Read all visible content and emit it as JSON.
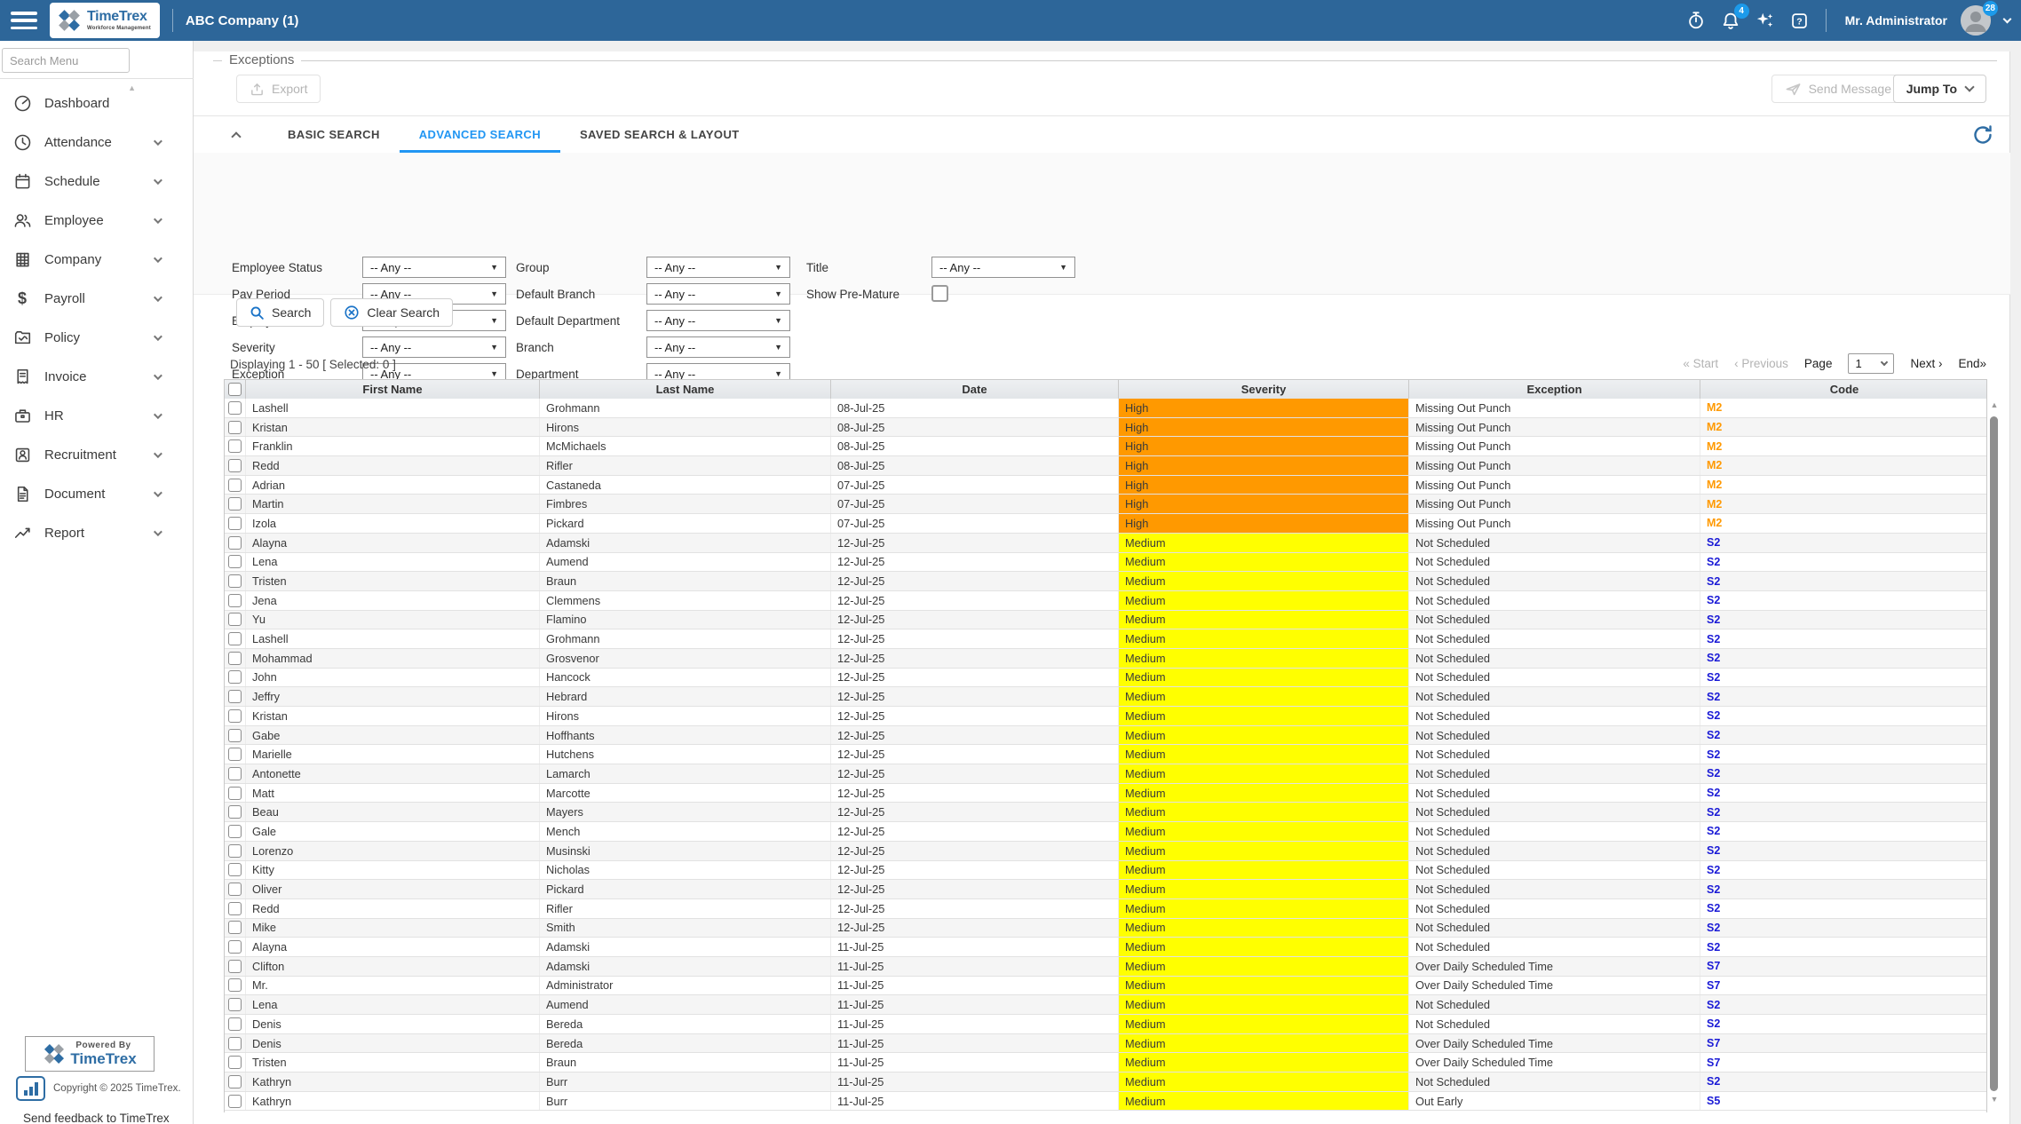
{
  "topbar": {
    "company": "ABC Company (1)",
    "user": "Mr. Administrator",
    "bell_badge": "4",
    "avatar_badge": "28",
    "brand": {
      "name": "TimeTrex",
      "tagline": "Workforce Management"
    },
    "icons": [
      "menu-icon",
      "stopwatch-icon",
      "bell-icon",
      "sparkles-icon",
      "help-icon",
      "avatar",
      "chevron-down-icon"
    ]
  },
  "sidebar": {
    "search_placeholder": "Search Menu",
    "items": [
      {
        "label": "Dashboard",
        "icon": "dashboard-icon",
        "chevron": false
      },
      {
        "label": "Attendance",
        "icon": "clock-icon",
        "chevron": true
      },
      {
        "label": "Schedule",
        "icon": "calendar-icon",
        "chevron": true
      },
      {
        "label": "Employee",
        "icon": "people-icon",
        "chevron": true
      },
      {
        "label": "Company",
        "icon": "building-icon",
        "chevron": true
      },
      {
        "label": "Payroll",
        "icon": "dollar-icon",
        "chevron": true
      },
      {
        "label": "Policy",
        "icon": "folder-check-icon",
        "chevron": true
      },
      {
        "label": "Invoice",
        "icon": "receipt-icon",
        "chevron": true
      },
      {
        "label": "HR",
        "icon": "briefcase-icon",
        "chevron": true
      },
      {
        "label": "Recruitment",
        "icon": "id-card-icon",
        "chevron": true
      },
      {
        "label": "Document",
        "icon": "file-icon",
        "chevron": true
      },
      {
        "label": "Report",
        "icon": "chart-line-icon",
        "chevron": true
      }
    ],
    "footer": {
      "powered_by": "Powered By",
      "brand": "TimeTrex",
      "copyright": "Copyright © 2025 TimeTrex.",
      "feedback": "Send feedback to TimeTrex"
    }
  },
  "main": {
    "legend": "Exceptions",
    "toolbar": {
      "export_label": "Export",
      "send_message_label": "Send Message",
      "jump_to_label": "Jump To"
    },
    "tabs": [
      {
        "label": "BASIC SEARCH",
        "active": false
      },
      {
        "label": "ADVANCED SEARCH",
        "active": true
      },
      {
        "label": "SAVED SEARCH & LAYOUT",
        "active": false
      }
    ],
    "filters": {
      "any_value": "-- Any --",
      "fields": [
        {
          "label": "Employee Status",
          "col": 1,
          "row": 1,
          "type": "select"
        },
        {
          "label": "Pay Period",
          "col": 1,
          "row": 2,
          "type": "select"
        },
        {
          "label": "Employee",
          "col": 1,
          "row": 3,
          "type": "select"
        },
        {
          "label": "Severity",
          "col": 1,
          "row": 4,
          "type": "select"
        },
        {
          "label": "Exception",
          "col": 1,
          "row": 5,
          "type": "select"
        },
        {
          "label": "Group",
          "col": 2,
          "row": 1,
          "type": "select"
        },
        {
          "label": "Default Branch",
          "col": 2,
          "row": 2,
          "type": "select"
        },
        {
          "label": "Default Department",
          "col": 2,
          "row": 3,
          "type": "select"
        },
        {
          "label": "Branch",
          "col": 2,
          "row": 4,
          "type": "select"
        },
        {
          "label": "Department",
          "col": 2,
          "row": 5,
          "type": "select"
        },
        {
          "label": "Title",
          "col": 3,
          "row": 1,
          "type": "select"
        },
        {
          "label": "Show Pre-Mature",
          "col": 3,
          "row": 2,
          "type": "checkbox",
          "checked": false
        }
      ],
      "search_label": "Search",
      "clear_label": "Clear Search"
    },
    "status_line": "Displaying 1 - 50 [ Selected: 0 ]",
    "pagination": {
      "start": "« Start",
      "previous": "‹ Previous",
      "page_label": "Page",
      "page_value": "1",
      "next": "Next ›",
      "end": "End»"
    },
    "table": {
      "headers": [
        "First Name",
        "Last Name",
        "Date",
        "Severity",
        "Exception",
        "Code"
      ],
      "rows": [
        [
          "Lashell",
          "Grohmann",
          "08-Jul-25",
          "High",
          "Missing Out Punch",
          "M2"
        ],
        [
          "Kristan",
          "Hirons",
          "08-Jul-25",
          "High",
          "Missing Out Punch",
          "M2"
        ],
        [
          "Franklin",
          "McMichaels",
          "08-Jul-25",
          "High",
          "Missing Out Punch",
          "M2"
        ],
        [
          "Redd",
          "Rifler",
          "08-Jul-25",
          "High",
          "Missing Out Punch",
          "M2"
        ],
        [
          "Adrian",
          "Castaneda",
          "07-Jul-25",
          "High",
          "Missing Out Punch",
          "M2"
        ],
        [
          "Martin",
          "Fimbres",
          "07-Jul-25",
          "High",
          "Missing Out Punch",
          "M2"
        ],
        [
          "Izola",
          "Pickard",
          "07-Jul-25",
          "High",
          "Missing Out Punch",
          "M2"
        ],
        [
          "Alayna",
          "Adamski",
          "12-Jul-25",
          "Medium",
          "Not Scheduled",
          "S2"
        ],
        [
          "Lena",
          "Aumend",
          "12-Jul-25",
          "Medium",
          "Not Scheduled",
          "S2"
        ],
        [
          "Tristen",
          "Braun",
          "12-Jul-25",
          "Medium",
          "Not Scheduled",
          "S2"
        ],
        [
          "Jena",
          "Clemmens",
          "12-Jul-25",
          "Medium",
          "Not Scheduled",
          "S2"
        ],
        [
          "Yu",
          "Flamino",
          "12-Jul-25",
          "Medium",
          "Not Scheduled",
          "S2"
        ],
        [
          "Lashell",
          "Grohmann",
          "12-Jul-25",
          "Medium",
          "Not Scheduled",
          "S2"
        ],
        [
          "Mohammad",
          "Grosvenor",
          "12-Jul-25",
          "Medium",
          "Not Scheduled",
          "S2"
        ],
        [
          "John",
          "Hancock",
          "12-Jul-25",
          "Medium",
          "Not Scheduled",
          "S2"
        ],
        [
          "Jeffry",
          "Hebrard",
          "12-Jul-25",
          "Medium",
          "Not Scheduled",
          "S2"
        ],
        [
          "Kristan",
          "Hirons",
          "12-Jul-25",
          "Medium",
          "Not Scheduled",
          "S2"
        ],
        [
          "Gabe",
          "Hoffhants",
          "12-Jul-25",
          "Medium",
          "Not Scheduled",
          "S2"
        ],
        [
          "Marielle",
          "Hutchens",
          "12-Jul-25",
          "Medium",
          "Not Scheduled",
          "S2"
        ],
        [
          "Antonette",
          "Lamarch",
          "12-Jul-25",
          "Medium",
          "Not Scheduled",
          "S2"
        ],
        [
          "Matt",
          "Marcotte",
          "12-Jul-25",
          "Medium",
          "Not Scheduled",
          "S2"
        ],
        [
          "Beau",
          "Mayers",
          "12-Jul-25",
          "Medium",
          "Not Scheduled",
          "S2"
        ],
        [
          "Gale",
          "Mench",
          "12-Jul-25",
          "Medium",
          "Not Scheduled",
          "S2"
        ],
        [
          "Lorenzo",
          "Musinski",
          "12-Jul-25",
          "Medium",
          "Not Scheduled",
          "S2"
        ],
        [
          "Kitty",
          "Nicholas",
          "12-Jul-25",
          "Medium",
          "Not Scheduled",
          "S2"
        ],
        [
          "Oliver",
          "Pickard",
          "12-Jul-25",
          "Medium",
          "Not Scheduled",
          "S2"
        ],
        [
          "Redd",
          "Rifler",
          "12-Jul-25",
          "Medium",
          "Not Scheduled",
          "S2"
        ],
        [
          "Mike",
          "Smith",
          "12-Jul-25",
          "Medium",
          "Not Scheduled",
          "S2"
        ],
        [
          "Alayna",
          "Adamski",
          "11-Jul-25",
          "Medium",
          "Not Scheduled",
          "S2"
        ],
        [
          "Clifton",
          "Adamski",
          "11-Jul-25",
          "Medium",
          "Over Daily Scheduled Time",
          "S7"
        ],
        [
          "Mr.",
          "Administrator",
          "11-Jul-25",
          "Medium",
          "Over Daily Scheduled Time",
          "S7"
        ],
        [
          "Lena",
          "Aumend",
          "11-Jul-25",
          "Medium",
          "Not Scheduled",
          "S2"
        ],
        [
          "Denis",
          "Bereda",
          "11-Jul-25",
          "Medium",
          "Not Scheduled",
          "S2"
        ],
        [
          "Denis",
          "Bereda",
          "11-Jul-25",
          "Medium",
          "Over Daily Scheduled Time",
          "S7"
        ],
        [
          "Tristen",
          "Braun",
          "11-Jul-25",
          "Medium",
          "Over Daily Scheduled Time",
          "S7"
        ],
        [
          "Kathryn",
          "Burr",
          "11-Jul-25",
          "Medium",
          "Not Scheduled",
          "S2"
        ],
        [
          "Kathryn",
          "Burr",
          "11-Jul-25",
          "Medium",
          "Out Early",
          "S5"
        ]
      ]
    }
  },
  "colors": {
    "topbar": "#2D6699",
    "accent": "#2196F3",
    "severity": {
      "High": "#FF9900",
      "Medium": "#FFFF00"
    },
    "code": {
      "M2": "#FF9900",
      "S2": "#1A1AD6",
      "S7": "#1A1AD6",
      "S5": "#1A1AD6"
    }
  }
}
